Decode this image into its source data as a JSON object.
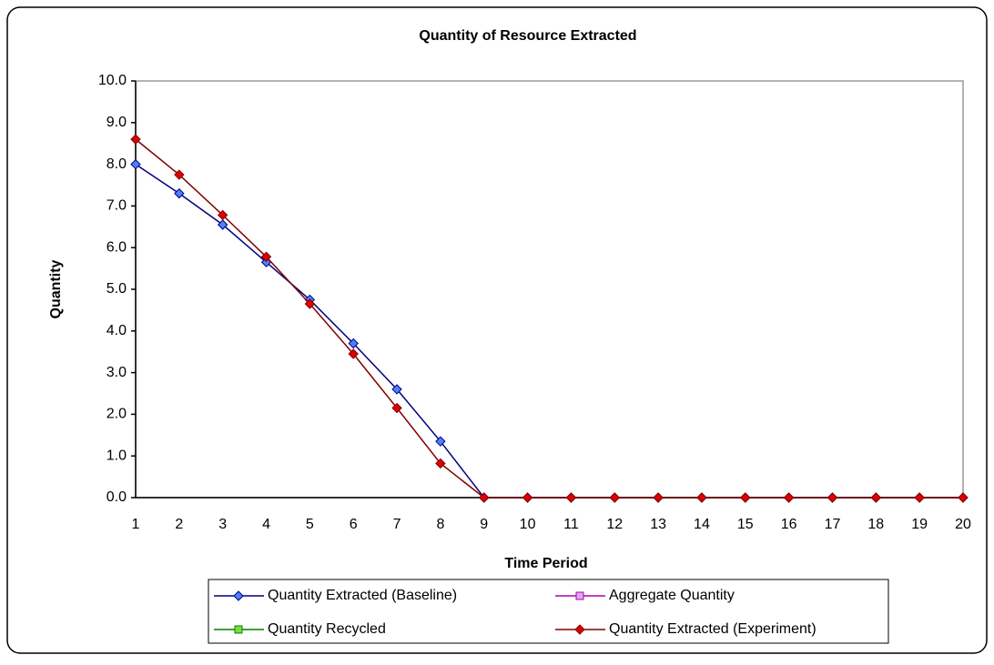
{
  "chart_data": {
    "type": "line",
    "title": "Quantity of Resource Extracted",
    "x_label": "Time Period",
    "y_label": "Quantity",
    "categories": [
      "1",
      "2",
      "3",
      "4",
      "5",
      "6",
      "7",
      "8",
      "9",
      "10",
      "11",
      "12",
      "13",
      "14",
      "15",
      "16",
      "17",
      "18",
      "19",
      "20"
    ],
    "ylim": [
      0,
      10
    ],
    "yticks": [
      {
        "value": 0,
        "label": "0.0"
      },
      {
        "value": 1,
        "label": "1.0"
      },
      {
        "value": 2,
        "label": "2.0"
      },
      {
        "value": 3,
        "label": "3.0"
      },
      {
        "value": 4,
        "label": "4.0"
      },
      {
        "value": 5,
        "label": "5.0"
      },
      {
        "value": 6,
        "label": "6.0"
      },
      {
        "value": 7,
        "label": "7.0"
      },
      {
        "value": 8,
        "label": "8.0"
      },
      {
        "value": 9,
        "label": "9.0"
      },
      {
        "value": 10,
        "label": "10.0"
      }
    ],
    "grid": false,
    "series": [
      {
        "name": "Quantity Extracted (Baseline)",
        "color": "#000080",
        "marker_fill": "#4d7fff",
        "marker": "diamond",
        "values": [
          8.0,
          7.3,
          6.55,
          5.65,
          4.75,
          3.7,
          2.6,
          1.35,
          0,
          0,
          0,
          0,
          0,
          0,
          0,
          0,
          0,
          0,
          0,
          0
        ]
      },
      {
        "name": "Aggregate Quantity",
        "color": "#b000b0",
        "marker_fill": "#d8a8f0",
        "marker": "square",
        "values": [
          null,
          null,
          null,
          null,
          null,
          null,
          null,
          null,
          null,
          null,
          null,
          null,
          null,
          null,
          null,
          null,
          null,
          null,
          null,
          null
        ]
      },
      {
        "name": "Quantity Recycled",
        "color": "#008000",
        "marker_fill": "#7ddc3c",
        "marker": "square",
        "values": [
          null,
          null,
          null,
          null,
          null,
          null,
          null,
          null,
          null,
          null,
          null,
          null,
          null,
          null,
          null,
          null,
          null,
          null,
          null,
          null
        ]
      },
      {
        "name": "Quantity Extracted (Experiment)",
        "color": "#800000",
        "marker_fill": "#e00000",
        "marker": "diamond",
        "values": [
          8.6,
          7.75,
          6.78,
          5.78,
          4.65,
          3.45,
          2.15,
          0.82,
          0,
          0,
          0,
          0,
          0,
          0,
          0,
          0,
          0,
          0,
          0,
          0
        ]
      }
    ]
  }
}
